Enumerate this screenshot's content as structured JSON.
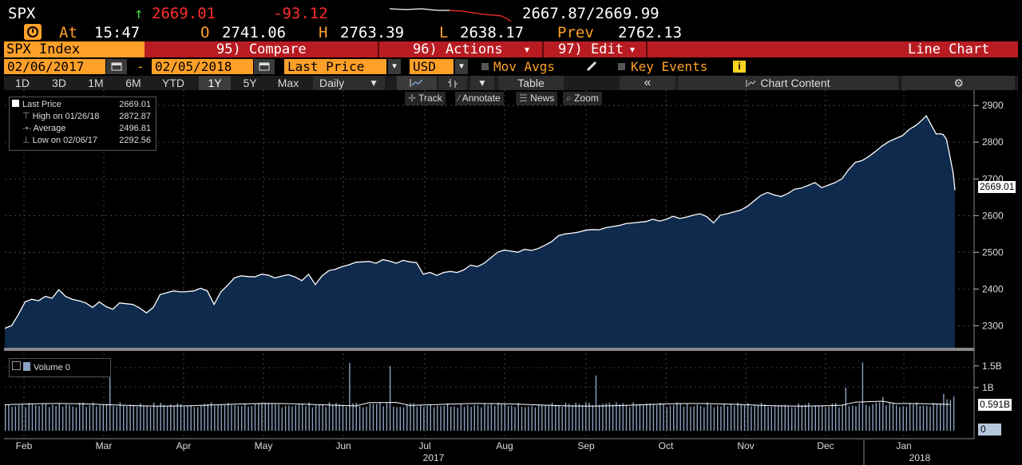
{
  "quote": {
    "ticker": "SPX",
    "arrow": "↑",
    "last": "2669.01",
    "change": "-93.12",
    "bid_ask": "2667.87/2669.99",
    "at_label": "At",
    "time": "15:47",
    "open_label": "O",
    "open": "2741.06",
    "high_label": "H",
    "high": "2763.39",
    "low_label": "L",
    "low": "2638.17",
    "prev_label": "Prev",
    "prev": "2762.13"
  },
  "function_bar": {
    "security": "SPX Index",
    "compare": "95) Compare",
    "actions": "96) Actions",
    "edit": "97) Edit",
    "actions_arrow": "▾",
    "edit_arrow": "▾",
    "chart_type": "Line Chart"
  },
  "date_row": {
    "start_date": "02/06/2017",
    "dash": "-",
    "end_date": "02/05/2018",
    "field": "Last Price",
    "currency": "USD",
    "mov_avgs": "Mov Avgs",
    "key_events": "Key Events",
    "info": "i"
  },
  "periods": [
    "1D",
    "3D",
    "1M",
    "6M",
    "YTD",
    "1Y",
    "5Y",
    "Max"
  ],
  "active_period": "1Y",
  "frequency": "Daily",
  "table_label": "Table",
  "chart_content_label": "Chart Content",
  "tools": {
    "track": "Track",
    "annotate": "Annotate",
    "news": "News",
    "zoom": "Zoom"
  },
  "legend": {
    "last_price_label": "Last Price",
    "last_price_value": "2669.01",
    "high_label": "High on 01/26/18",
    "high_value": "2872.87",
    "average_label": "Average",
    "average_value": "2496.81",
    "low_label": "Low on 02/06/17",
    "low_value": "2292.56"
  },
  "volume_legend": {
    "label": "Volume",
    "value": "0"
  },
  "colors": {
    "amber": "#ffa028",
    "function_bar_red": "#b81c22",
    "area_fill": "#0e2a4d",
    "line": "#ffffff",
    "volume_bar": "#8aa2c4"
  },
  "chart_data": {
    "type": "area",
    "x_months": [
      "Feb",
      "Mar",
      "Apr",
      "May",
      "Jun",
      "Jul",
      "Aug",
      "Sep",
      "Oct",
      "Nov",
      "Dec",
      "Jan"
    ],
    "x_years": [
      "2017",
      "2018"
    ],
    "y_ticks": [
      2300,
      2400,
      2500,
      2600,
      2700,
      2800,
      2900
    ],
    "ylim": [
      2240,
      2920
    ],
    "price_tag": "2669.01",
    "grid": true,
    "series": [
      {
        "name": "Last Price",
        "points": [
          [
            0,
            2293
          ],
          [
            4,
            2300
          ],
          [
            8,
            2330
          ],
          [
            12,
            2365
          ],
          [
            16,
            2372
          ],
          [
            20,
            2368
          ],
          [
            24,
            2380
          ],
          [
            28,
            2375
          ],
          [
            32,
            2398
          ],
          [
            36,
            2380
          ],
          [
            40,
            2372
          ],
          [
            44,
            2368
          ],
          [
            48,
            2362
          ],
          [
            52,
            2350
          ],
          [
            56,
            2365
          ],
          [
            60,
            2352
          ],
          [
            64,
            2345
          ],
          [
            68,
            2362
          ],
          [
            72,
            2360
          ],
          [
            76,
            2358
          ],
          [
            80,
            2348
          ],
          [
            84,
            2335
          ],
          [
            88,
            2350
          ],
          [
            92,
            2385
          ],
          [
            96,
            2390
          ],
          [
            100,
            2395
          ],
          [
            104,
            2392
          ],
          [
            108,
            2393
          ],
          [
            112,
            2395
          ],
          [
            116,
            2402
          ],
          [
            120,
            2395
          ],
          [
            124,
            2358
          ],
          [
            128,
            2392
          ],
          [
            132,
            2410
          ],
          [
            136,
            2430
          ],
          [
            140,
            2436
          ],
          [
            144,
            2434
          ],
          [
            148,
            2433
          ],
          [
            152,
            2440
          ],
          [
            156,
            2438
          ],
          [
            160,
            2430
          ],
          [
            164,
            2435
          ],
          [
            168,
            2439
          ],
          [
            172,
            2433
          ],
          [
            176,
            2423
          ],
          [
            180,
            2440
          ],
          [
            184,
            2412
          ],
          [
            188,
            2436
          ],
          [
            192,
            2450
          ],
          [
            196,
            2454
          ],
          [
            200,
            2461
          ],
          [
            204,
            2466
          ],
          [
            208,
            2473
          ],
          [
            212,
            2474
          ],
          [
            216,
            2475
          ],
          [
            220,
            2470
          ],
          [
            224,
            2480
          ],
          [
            228,
            2476
          ],
          [
            232,
            2470
          ],
          [
            236,
            2478
          ],
          [
            240,
            2474
          ],
          [
            244,
            2472
          ],
          [
            248,
            2440
          ],
          [
            252,
            2445
          ],
          [
            256,
            2437
          ],
          [
            260,
            2445
          ],
          [
            264,
            2448
          ],
          [
            268,
            2445
          ],
          [
            272,
            2452
          ],
          [
            276,
            2465
          ],
          [
            280,
            2461
          ],
          [
            284,
            2470
          ],
          [
            288,
            2485
          ],
          [
            292,
            2500
          ],
          [
            296,
            2506
          ],
          [
            300,
            2503
          ],
          [
            304,
            2500
          ],
          [
            308,
            2508
          ],
          [
            312,
            2505
          ],
          [
            316,
            2510
          ],
          [
            320,
            2519
          ],
          [
            324,
            2529
          ],
          [
            328,
            2545
          ],
          [
            332,
            2550
          ],
          [
            336,
            2552
          ],
          [
            340,
            2555
          ],
          [
            344,
            2560
          ],
          [
            348,
            2562
          ],
          [
            352,
            2561
          ],
          [
            356,
            2567
          ],
          [
            360,
            2570
          ],
          [
            364,
            2573
          ],
          [
            368,
            2578
          ],
          [
            372,
            2580
          ],
          [
            376,
            2582
          ],
          [
            380,
            2584
          ],
          [
            384,
            2590
          ],
          [
            388,
            2585
          ],
          [
            392,
            2590
          ],
          [
            396,
            2598
          ],
          [
            400,
            2592
          ],
          [
            404,
            2596
          ],
          [
            408,
            2601
          ],
          [
            412,
            2605
          ],
          [
            416,
            2597
          ],
          [
            420,
            2580
          ],
          [
            424,
            2601
          ],
          [
            428,
            2605
          ],
          [
            432,
            2610
          ],
          [
            436,
            2615
          ],
          [
            440,
            2625
          ],
          [
            444,
            2640
          ],
          [
            448,
            2655
          ],
          [
            452,
            2663
          ],
          [
            456,
            2656
          ],
          [
            460,
            2652
          ],
          [
            464,
            2660
          ],
          [
            468,
            2672
          ],
          [
            472,
            2675
          ],
          [
            476,
            2682
          ],
          [
            480,
            2690
          ],
          [
            484,
            2676
          ],
          [
            488,
            2683
          ],
          [
            492,
            2690
          ],
          [
            496,
            2700
          ],
          [
            500,
            2725
          ],
          [
            504,
            2745
          ],
          [
            508,
            2750
          ],
          [
            512,
            2761
          ],
          [
            516,
            2775
          ],
          [
            520,
            2790
          ],
          [
            524,
            2802
          ],
          [
            528,
            2810
          ],
          [
            532,
            2818
          ],
          [
            536,
            2835
          ],
          [
            540,
            2846
          ],
          [
            544,
            2862
          ],
          [
            546,
            2872
          ],
          [
            548,
            2855
          ],
          [
            550,
            2838
          ],
          [
            552,
            2822
          ],
          [
            554,
            2823
          ],
          [
            556,
            2821
          ],
          [
            558,
            2808
          ],
          [
            560,
            2762
          ],
          [
            562,
            2715
          ],
          [
            563,
            2669
          ]
        ]
      }
    ],
    "volume": {
      "name": "Volume",
      "y_ticks_labels": [
        "1.5B",
        "1B"
      ],
      "ylim_billions": [
        0,
        1.7
      ],
      "current_tag": "0.591B",
      "zero_tag": "0",
      "spikes": [
        [
          62,
          1.55
        ],
        [
          204,
          1.57
        ],
        [
          228,
          1.5
        ],
        [
          350,
          1.28
        ],
        [
          498,
          1.0
        ],
        [
          508,
          1.58
        ],
        [
          520,
          0.78
        ],
        [
          556,
          0.85
        ]
      ],
      "avg_level": 0.6
    }
  }
}
